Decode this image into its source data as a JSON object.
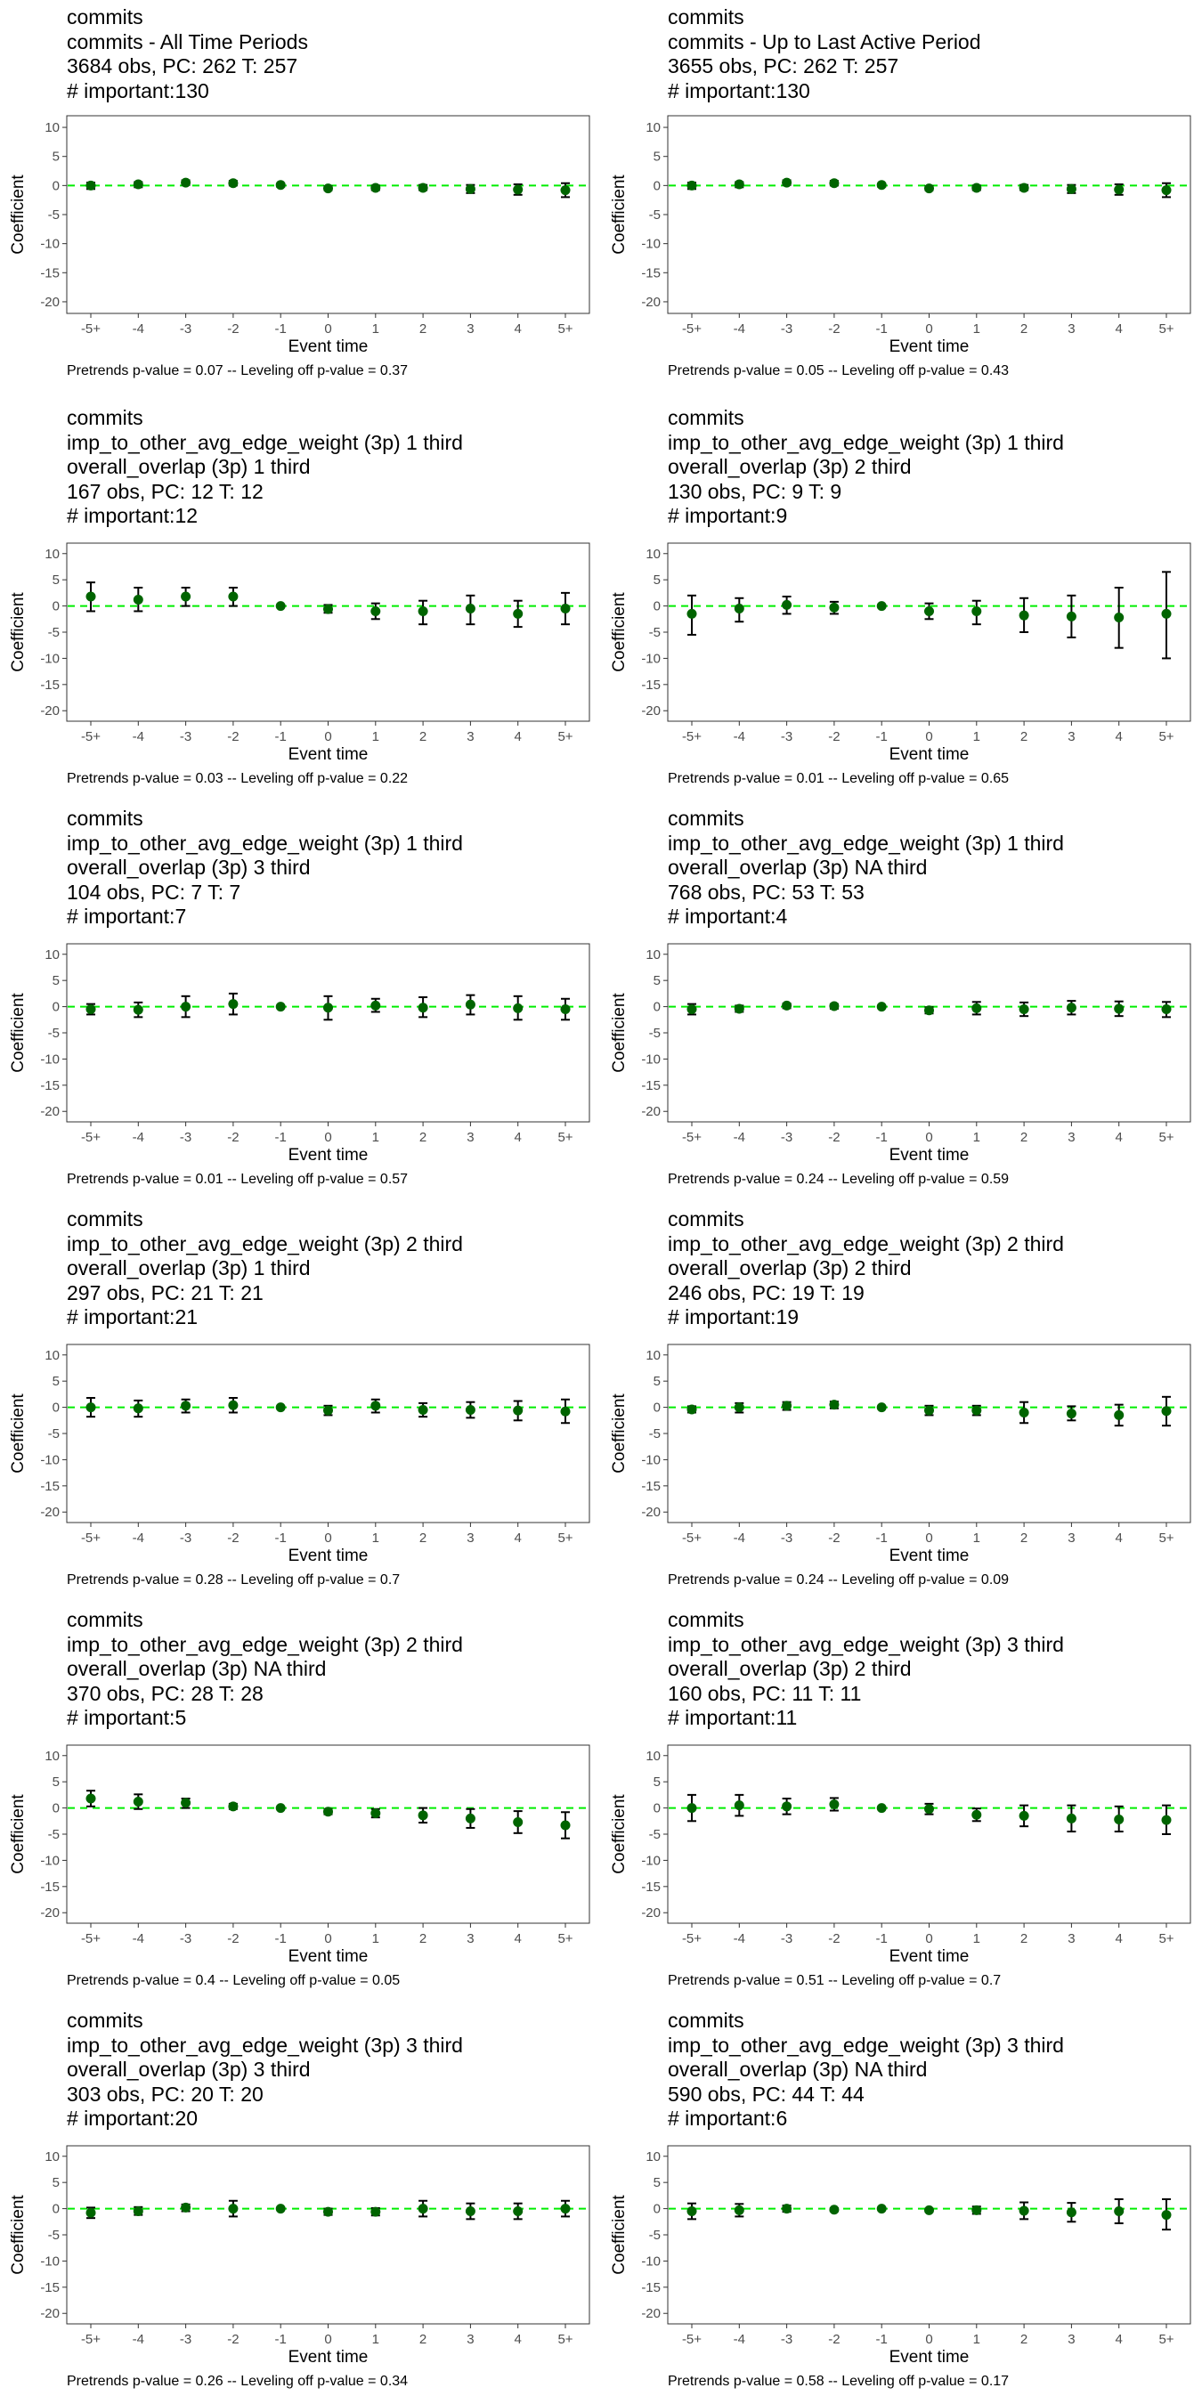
{
  "chart_data": [
    {
      "type": "scatter",
      "title_lines": [
        "commits",
        "commits - All Time Periods",
        "3684 obs, PC: 262 T: 257",
        "# important:130"
      ],
      "xlabel": "Event time",
      "ylabel": "Coefficient",
      "categories": [
        "-5+",
        "-4",
        "-3",
        "-2",
        "-1",
        "0",
        "1",
        "2",
        "3",
        "4",
        "5+"
      ],
      "ylim": [
        -22,
        12
      ],
      "yticks": [
        10,
        5,
        0,
        -5,
        -10,
        -15,
        -20
      ],
      "reference_line": 0,
      "series": [
        {
          "estimate": [
            0,
            0.2,
            0.5,
            0.4,
            0.1,
            -0.5,
            -0.4,
            -0.4,
            -0.6,
            -0.7,
            -0.8
          ],
          "ci_low": [
            -0.6,
            -0.3,
            0.1,
            0,
            -0.2,
            -0.8,
            -0.8,
            -0.8,
            -1.3,
            -1.6,
            -2
          ],
          "ci_high": [
            0.5,
            0.6,
            0.9,
            0.8,
            0.3,
            -0.1,
            0,
            0.1,
            0.1,
            0.2,
            0.4
          ]
        }
      ],
      "footnote": "Pretrends p-value = 0.07 -- Leveling off p-value = 0.37"
    },
    {
      "type": "scatter",
      "title_lines": [
        "commits",
        "commits - Up to Last Active Period",
        "3655 obs, PC: 262 T: 257",
        "# important:130"
      ],
      "xlabel": "Event time",
      "ylabel": "Coefficient",
      "categories": [
        "-5+",
        "-4",
        "-3",
        "-2",
        "-1",
        "0",
        "1",
        "2",
        "3",
        "4",
        "5+"
      ],
      "ylim": [
        -22,
        12
      ],
      "yticks": [
        10,
        5,
        0,
        -5,
        -10,
        -15,
        -20
      ],
      "reference_line": 0,
      "series": [
        {
          "estimate": [
            0,
            0.2,
            0.5,
            0.4,
            0.1,
            -0.5,
            -0.4,
            -0.4,
            -0.6,
            -0.7,
            -0.8
          ],
          "ci_low": [
            -0.6,
            -0.3,
            0.1,
            0,
            -0.2,
            -0.8,
            -0.8,
            -0.8,
            -1.3,
            -1.6,
            -2
          ],
          "ci_high": [
            0.5,
            0.6,
            0.9,
            0.8,
            0.3,
            -0.1,
            0,
            0.1,
            0.1,
            0.2,
            0.4
          ]
        }
      ],
      "footnote": "Pretrends p-value = 0.05 -- Leveling off p-value = 0.43"
    },
    {
      "type": "scatter",
      "title_lines": [
        "commits",
        "imp_to_other_avg_edge_weight (3p) 1 third",
        "overall_overlap (3p) 1 third",
        "167 obs, PC: 12 T: 12",
        "# important:12"
      ],
      "xlabel": "Event time",
      "ylabel": "Coefficient",
      "categories": [
        "-5+",
        "-4",
        "-3",
        "-2",
        "-1",
        "0",
        "1",
        "2",
        "3",
        "4",
        "5+"
      ],
      "ylim": [
        -22,
        12
      ],
      "yticks": [
        10,
        5,
        0,
        -5,
        -10,
        -15,
        -20
      ],
      "reference_line": 0,
      "series": [
        {
          "estimate": [
            1.8,
            1.2,
            1.8,
            1.8,
            0,
            -0.6,
            -1,
            -1,
            -0.5,
            -1.5,
            -0.5
          ],
          "ci_low": [
            -1,
            -1,
            0,
            0,
            -0.1,
            -1.3,
            -2.5,
            -3.5,
            -3.5,
            -4,
            -3.5
          ],
          "ci_high": [
            4.5,
            3.5,
            3.5,
            3.5,
            0.1,
            0.2,
            0.5,
            1,
            2,
            1,
            2.5
          ]
        }
      ],
      "footnote": "Pretrends p-value = 0.03 -- Leveling off p-value = 0.22"
    },
    {
      "type": "scatter",
      "title_lines": [
        "commits",
        "imp_to_other_avg_edge_weight (3p) 1 third",
        "overall_overlap (3p) 2 third",
        "130 obs, PC: 9 T: 9",
        "# important:9"
      ],
      "xlabel": "Event time",
      "ylabel": "Coefficient",
      "categories": [
        "-5+",
        "-4",
        "-3",
        "-2",
        "-1",
        "0",
        "1",
        "2",
        "3",
        "4",
        "5+"
      ],
      "ylim": [
        -22,
        12
      ],
      "yticks": [
        10,
        5,
        0,
        -5,
        -10,
        -15,
        -20
      ],
      "reference_line": 0,
      "series": [
        {
          "estimate": [
            -1.5,
            -0.5,
            0.2,
            -0.3,
            0,
            -1,
            -1,
            -1.8,
            -2,
            -2.2,
            -1.5
          ],
          "ci_low": [
            -5.5,
            -3,
            -1.5,
            -1.5,
            -0.1,
            -2.5,
            -3.5,
            -5,
            -6,
            -8,
            -10
          ],
          "ci_high": [
            2,
            1.5,
            1.8,
            0.8,
            0.1,
            0.5,
            1,
            1.5,
            2,
            3.5,
            6.5
          ]
        }
      ],
      "footnote": "Pretrends p-value = 0.01 -- Leveling off p-value = 0.65"
    },
    {
      "type": "scatter",
      "title_lines": [
        "commits",
        "imp_to_other_avg_edge_weight (3p) 1 third",
        "overall_overlap (3p) 3 third",
        "104 obs, PC: 7 T: 7",
        "# important:7"
      ],
      "xlabel": "Event time",
      "ylabel": "Coefficient",
      "categories": [
        "-5+",
        "-4",
        "-3",
        "-2",
        "-1",
        "0",
        "1",
        "2",
        "3",
        "4",
        "5+"
      ],
      "ylim": [
        -22,
        12
      ],
      "yticks": [
        10,
        5,
        0,
        -5,
        -10,
        -15,
        -20
      ],
      "reference_line": 0,
      "series": [
        {
          "estimate": [
            -0.5,
            -0.6,
            0,
            0.5,
            0,
            -0.2,
            0.2,
            -0.2,
            0.4,
            -0.3,
            -0.5
          ],
          "ci_low": [
            -1.5,
            -2,
            -2,
            -1.5,
            -0.1,
            -2.5,
            -1,
            -2,
            -1.5,
            -2.5,
            -2.5
          ],
          "ci_high": [
            0.5,
            0.8,
            2,
            2.5,
            0.1,
            2,
            1.5,
            1.8,
            2.2,
            2,
            1.5
          ]
        }
      ],
      "footnote": "Pretrends p-value = 0.01 -- Leveling off p-value = 0.57"
    },
    {
      "type": "scatter",
      "title_lines": [
        "commits",
        "imp_to_other_avg_edge_weight (3p) 1 third",
        "overall_overlap (3p) NA third",
        "768 obs, PC: 53 T: 53",
        "# important:4"
      ],
      "xlabel": "Event time",
      "ylabel": "Coefficient",
      "categories": [
        "-5+",
        "-4",
        "-3",
        "-2",
        "-1",
        "0",
        "1",
        "2",
        "3",
        "4",
        "5+"
      ],
      "ylim": [
        -22,
        12
      ],
      "yticks": [
        10,
        5,
        0,
        -5,
        -10,
        -15,
        -20
      ],
      "reference_line": 0,
      "series": [
        {
          "estimate": [
            -0.5,
            -0.4,
            0.2,
            0.1,
            0,
            -0.7,
            -0.3,
            -0.5,
            -0.2,
            -0.4,
            -0.5
          ],
          "ci_low": [
            -1.5,
            -1,
            -0.3,
            -0.4,
            -0.1,
            -1.3,
            -1.5,
            -1.8,
            -1.5,
            -1.8,
            -2
          ],
          "ci_high": [
            0.5,
            0.2,
            0.6,
            0.5,
            0.1,
            -0.1,
            0.9,
            0.8,
            1.1,
            1,
            0.9
          ]
        }
      ],
      "footnote": "Pretrends p-value = 0.24 -- Leveling off p-value = 0.59"
    },
    {
      "type": "scatter",
      "title_lines": [
        "commits",
        "imp_to_other_avg_edge_weight (3p) 2 third",
        "overall_overlap (3p) 1 third",
        "297 obs, PC: 21 T: 21",
        "# important:21"
      ],
      "xlabel": "Event time",
      "ylabel": "Coefficient",
      "categories": [
        "-5+",
        "-4",
        "-3",
        "-2",
        "-1",
        "0",
        "1",
        "2",
        "3",
        "4",
        "5+"
      ],
      "ylim": [
        -22,
        12
      ],
      "yticks": [
        10,
        5,
        0,
        -5,
        -10,
        -15,
        -20
      ],
      "reference_line": 0,
      "series": [
        {
          "estimate": [
            0,
            -0.2,
            0.3,
            0.4,
            0,
            -0.6,
            0.3,
            -0.5,
            -0.5,
            -0.6,
            -0.8
          ],
          "ci_low": [
            -1.8,
            -1.8,
            -1,
            -1,
            -0.1,
            -1.5,
            -1,
            -1.8,
            -2,
            -2.5,
            -3
          ],
          "ci_high": [
            1.8,
            1.3,
            1.5,
            1.8,
            0.1,
            0.3,
            1.5,
            0.8,
            1,
            1.2,
            1.5
          ]
        }
      ],
      "footnote": "Pretrends p-value = 0.28 -- Leveling off p-value = 0.7"
    },
    {
      "type": "scatter",
      "title_lines": [
        "commits",
        "imp_to_other_avg_edge_weight (3p) 2 third",
        "overall_overlap (3p) 2 third",
        "246 obs, PC: 19 T: 19",
        "# important:19"
      ],
      "xlabel": "Event time",
      "ylabel": "Coefficient",
      "categories": [
        "-5+",
        "-4",
        "-3",
        "-2",
        "-1",
        "0",
        "1",
        "2",
        "3",
        "4",
        "5+"
      ],
      "ylim": [
        -22,
        12
      ],
      "yticks": [
        10,
        5,
        0,
        -5,
        -10,
        -15,
        -20
      ],
      "reference_line": 0,
      "series": [
        {
          "estimate": [
            -0.4,
            0,
            0.3,
            0.5,
            0,
            -0.6,
            -0.6,
            -1,
            -1.2,
            -1.5,
            -0.7
          ],
          "ci_low": [
            -1,
            -1,
            -0.5,
            -0.2,
            -0.1,
            -1.5,
            -1.5,
            -3,
            -2.5,
            -3.5,
            -3.5
          ],
          "ci_high": [
            0.2,
            0.8,
            1,
            1.1,
            0.1,
            0.3,
            0.3,
            1,
            0.2,
            0.5,
            2
          ]
        }
      ],
      "footnote": "Pretrends p-value = 0.24 -- Leveling off p-value = 0.09"
    },
    {
      "type": "scatter",
      "title_lines": [
        "commits",
        "imp_to_other_avg_edge_weight (3p) 2 third",
        "overall_overlap (3p) NA third",
        "370 obs, PC: 28 T: 28",
        "# important:5"
      ],
      "xlabel": "Event time",
      "ylabel": "Coefficient",
      "categories": [
        "-5+",
        "-4",
        "-3",
        "-2",
        "-1",
        "0",
        "1",
        "2",
        "3",
        "4",
        "5+"
      ],
      "ylim": [
        -22,
        12
      ],
      "yticks": [
        10,
        5,
        0,
        -5,
        -10,
        -15,
        -20
      ],
      "reference_line": 0,
      "series": [
        {
          "estimate": [
            1.8,
            1.2,
            1,
            0.3,
            0,
            -0.7,
            -1,
            -1.4,
            -2,
            -2.7,
            -3.3
          ],
          "ci_low": [
            0.3,
            -0.2,
            0,
            -0.2,
            -0.1,
            -1.2,
            -1.8,
            -2.8,
            -3.8,
            -4.8,
            -5.8
          ],
          "ci_high": [
            3.3,
            2.6,
            1.8,
            0.8,
            0.1,
            -0.2,
            -0.2,
            0,
            -0.2,
            -0.6,
            -0.8
          ]
        }
      ],
      "footnote": "Pretrends p-value = 0.4 -- Leveling off p-value = 0.05"
    },
    {
      "type": "scatter",
      "title_lines": [
        "commits",
        "imp_to_other_avg_edge_weight (3p) 3 third",
        "overall_overlap (3p) 2 third",
        "160 obs, PC: 11 T: 11",
        "# important:11"
      ],
      "xlabel": "Event time",
      "ylabel": "Coefficient",
      "categories": [
        "-5+",
        "-4",
        "-3",
        "-2",
        "-1",
        "0",
        "1",
        "2",
        "3",
        "4",
        "5+"
      ],
      "ylim": [
        -22,
        12
      ],
      "yticks": [
        10,
        5,
        0,
        -5,
        -10,
        -15,
        -20
      ],
      "reference_line": 0,
      "series": [
        {
          "estimate": [
            0,
            0.5,
            0.3,
            0.7,
            0,
            -0.2,
            -1.3,
            -1.5,
            -2,
            -2.2,
            -2.3
          ],
          "ci_low": [
            -2.5,
            -1.5,
            -1.2,
            -0.5,
            -0.1,
            -1.2,
            -2.5,
            -3.5,
            -4.5,
            -4.5,
            -5
          ],
          "ci_high": [
            2.5,
            2.5,
            1.8,
            1.9,
            0.1,
            0.8,
            -0.1,
            0.5,
            0.5,
            0.3,
            0.5
          ]
        }
      ],
      "footnote": "Pretrends p-value = 0.51 -- Leveling off p-value = 0.7"
    },
    {
      "type": "scatter",
      "title_lines": [
        "commits",
        "imp_to_other_avg_edge_weight (3p) 3 third",
        "overall_overlap (3p) 3 third",
        "303 obs, PC: 20 T: 20",
        "# important:20"
      ],
      "xlabel": "Event time",
      "ylabel": "Coefficient",
      "categories": [
        "-5+",
        "-4",
        "-3",
        "-2",
        "-1",
        "0",
        "1",
        "2",
        "3",
        "4",
        "5+"
      ],
      "ylim": [
        -22,
        12
      ],
      "yticks": [
        10,
        5,
        0,
        -5,
        -10,
        -15,
        -20
      ],
      "reference_line": 0,
      "series": [
        {
          "estimate": [
            -0.8,
            -0.5,
            0.2,
            0,
            0,
            -0.6,
            -0.6,
            0,
            -0.5,
            -0.5,
            0
          ],
          "ci_low": [
            -1.8,
            -1.2,
            -0.5,
            -1.5,
            -0.1,
            -1.2,
            -1.3,
            -1.5,
            -2,
            -2,
            -1.5
          ],
          "ci_high": [
            0.2,
            0.3,
            0.8,
            1.5,
            0.1,
            0,
            0.1,
            1.5,
            1,
            1,
            1.5
          ]
        }
      ],
      "footnote": "Pretrends p-value = 0.26 -- Leveling off p-value = 0.34"
    },
    {
      "type": "scatter",
      "title_lines": [
        "commits",
        "imp_to_other_avg_edge_weight (3p) 3 third",
        "overall_overlap (3p) NA third",
        "590 obs, PC: 44 T: 44",
        "# important:6"
      ],
      "xlabel": "Event time",
      "ylabel": "Coefficient",
      "categories": [
        "-5+",
        "-4",
        "-3",
        "-2",
        "-1",
        "0",
        "1",
        "2",
        "3",
        "4",
        "5+"
      ],
      "ylim": [
        -22,
        12
      ],
      "yticks": [
        10,
        5,
        0,
        -5,
        -10,
        -15,
        -20
      ],
      "reference_line": 0,
      "series": [
        {
          "estimate": [
            -0.5,
            -0.3,
            0,
            -0.2,
            0,
            -0.3,
            -0.3,
            -0.4,
            -0.7,
            -0.5,
            -1.2
          ],
          "ci_low": [
            -2,
            -1.5,
            -0.6,
            -0.5,
            -0.1,
            -0.6,
            -1,
            -2,
            -2.5,
            -2.8,
            -4
          ],
          "ci_high": [
            1,
            0.9,
            0.6,
            0.1,
            0.1,
            0,
            0.4,
            1.2,
            1.1,
            1.8,
            1.8
          ]
        }
      ],
      "footnote": "Pretrends p-value = 0.58 -- Leveling off p-value = 0.17"
    }
  ],
  "colors": {
    "point": "#006400",
    "errorbar": "#000000",
    "reference_line": "#00ee00",
    "axis_text": "#4d4d4d",
    "panel_border": "#333333"
  }
}
